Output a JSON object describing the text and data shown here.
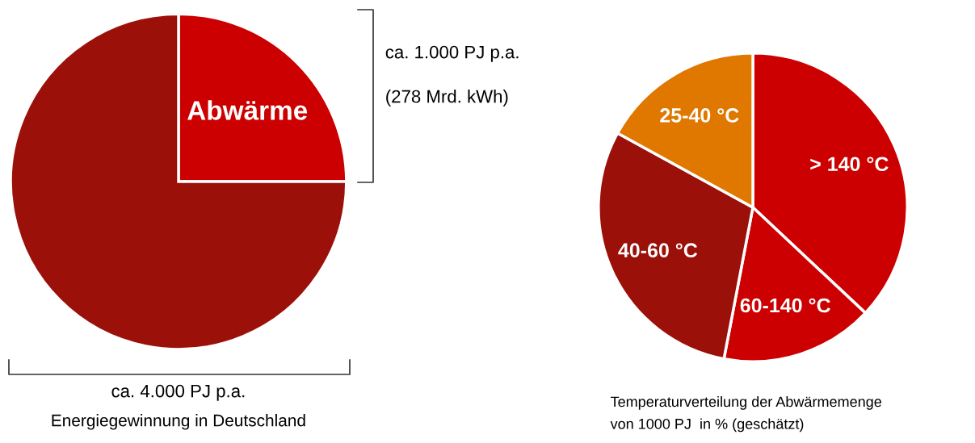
{
  "chart_data": [
    {
      "type": "pie",
      "categories": [
        "Abwärme",
        null
      ],
      "values": [
        25,
        75
      ],
      "colors": [
        "#cc0000",
        "#9b110a"
      ],
      "annotations": [
        "ca. 1.000 PJ p.a.",
        "(278 Mrd. kWh)",
        "ca. 4.000 PJ p.a.",
        "Energiegewinnung in Deutschland"
      ]
    },
    {
      "type": "pie",
      "categories": [
        "> 140 °C",
        "60-140 °C",
        "40-60 °C",
        "25-40 °C"
      ],
      "values": [
        37,
        16,
        30,
        17
      ],
      "colors": [
        "#cc0000",
        "#cc0000",
        "#9b110a",
        "#e07800"
      ],
      "annotations": [
        "Temperaturverteilung der Abwärmemenge",
        "von 1000 PJ  in % (geschätzt)"
      ]
    }
  ]
}
